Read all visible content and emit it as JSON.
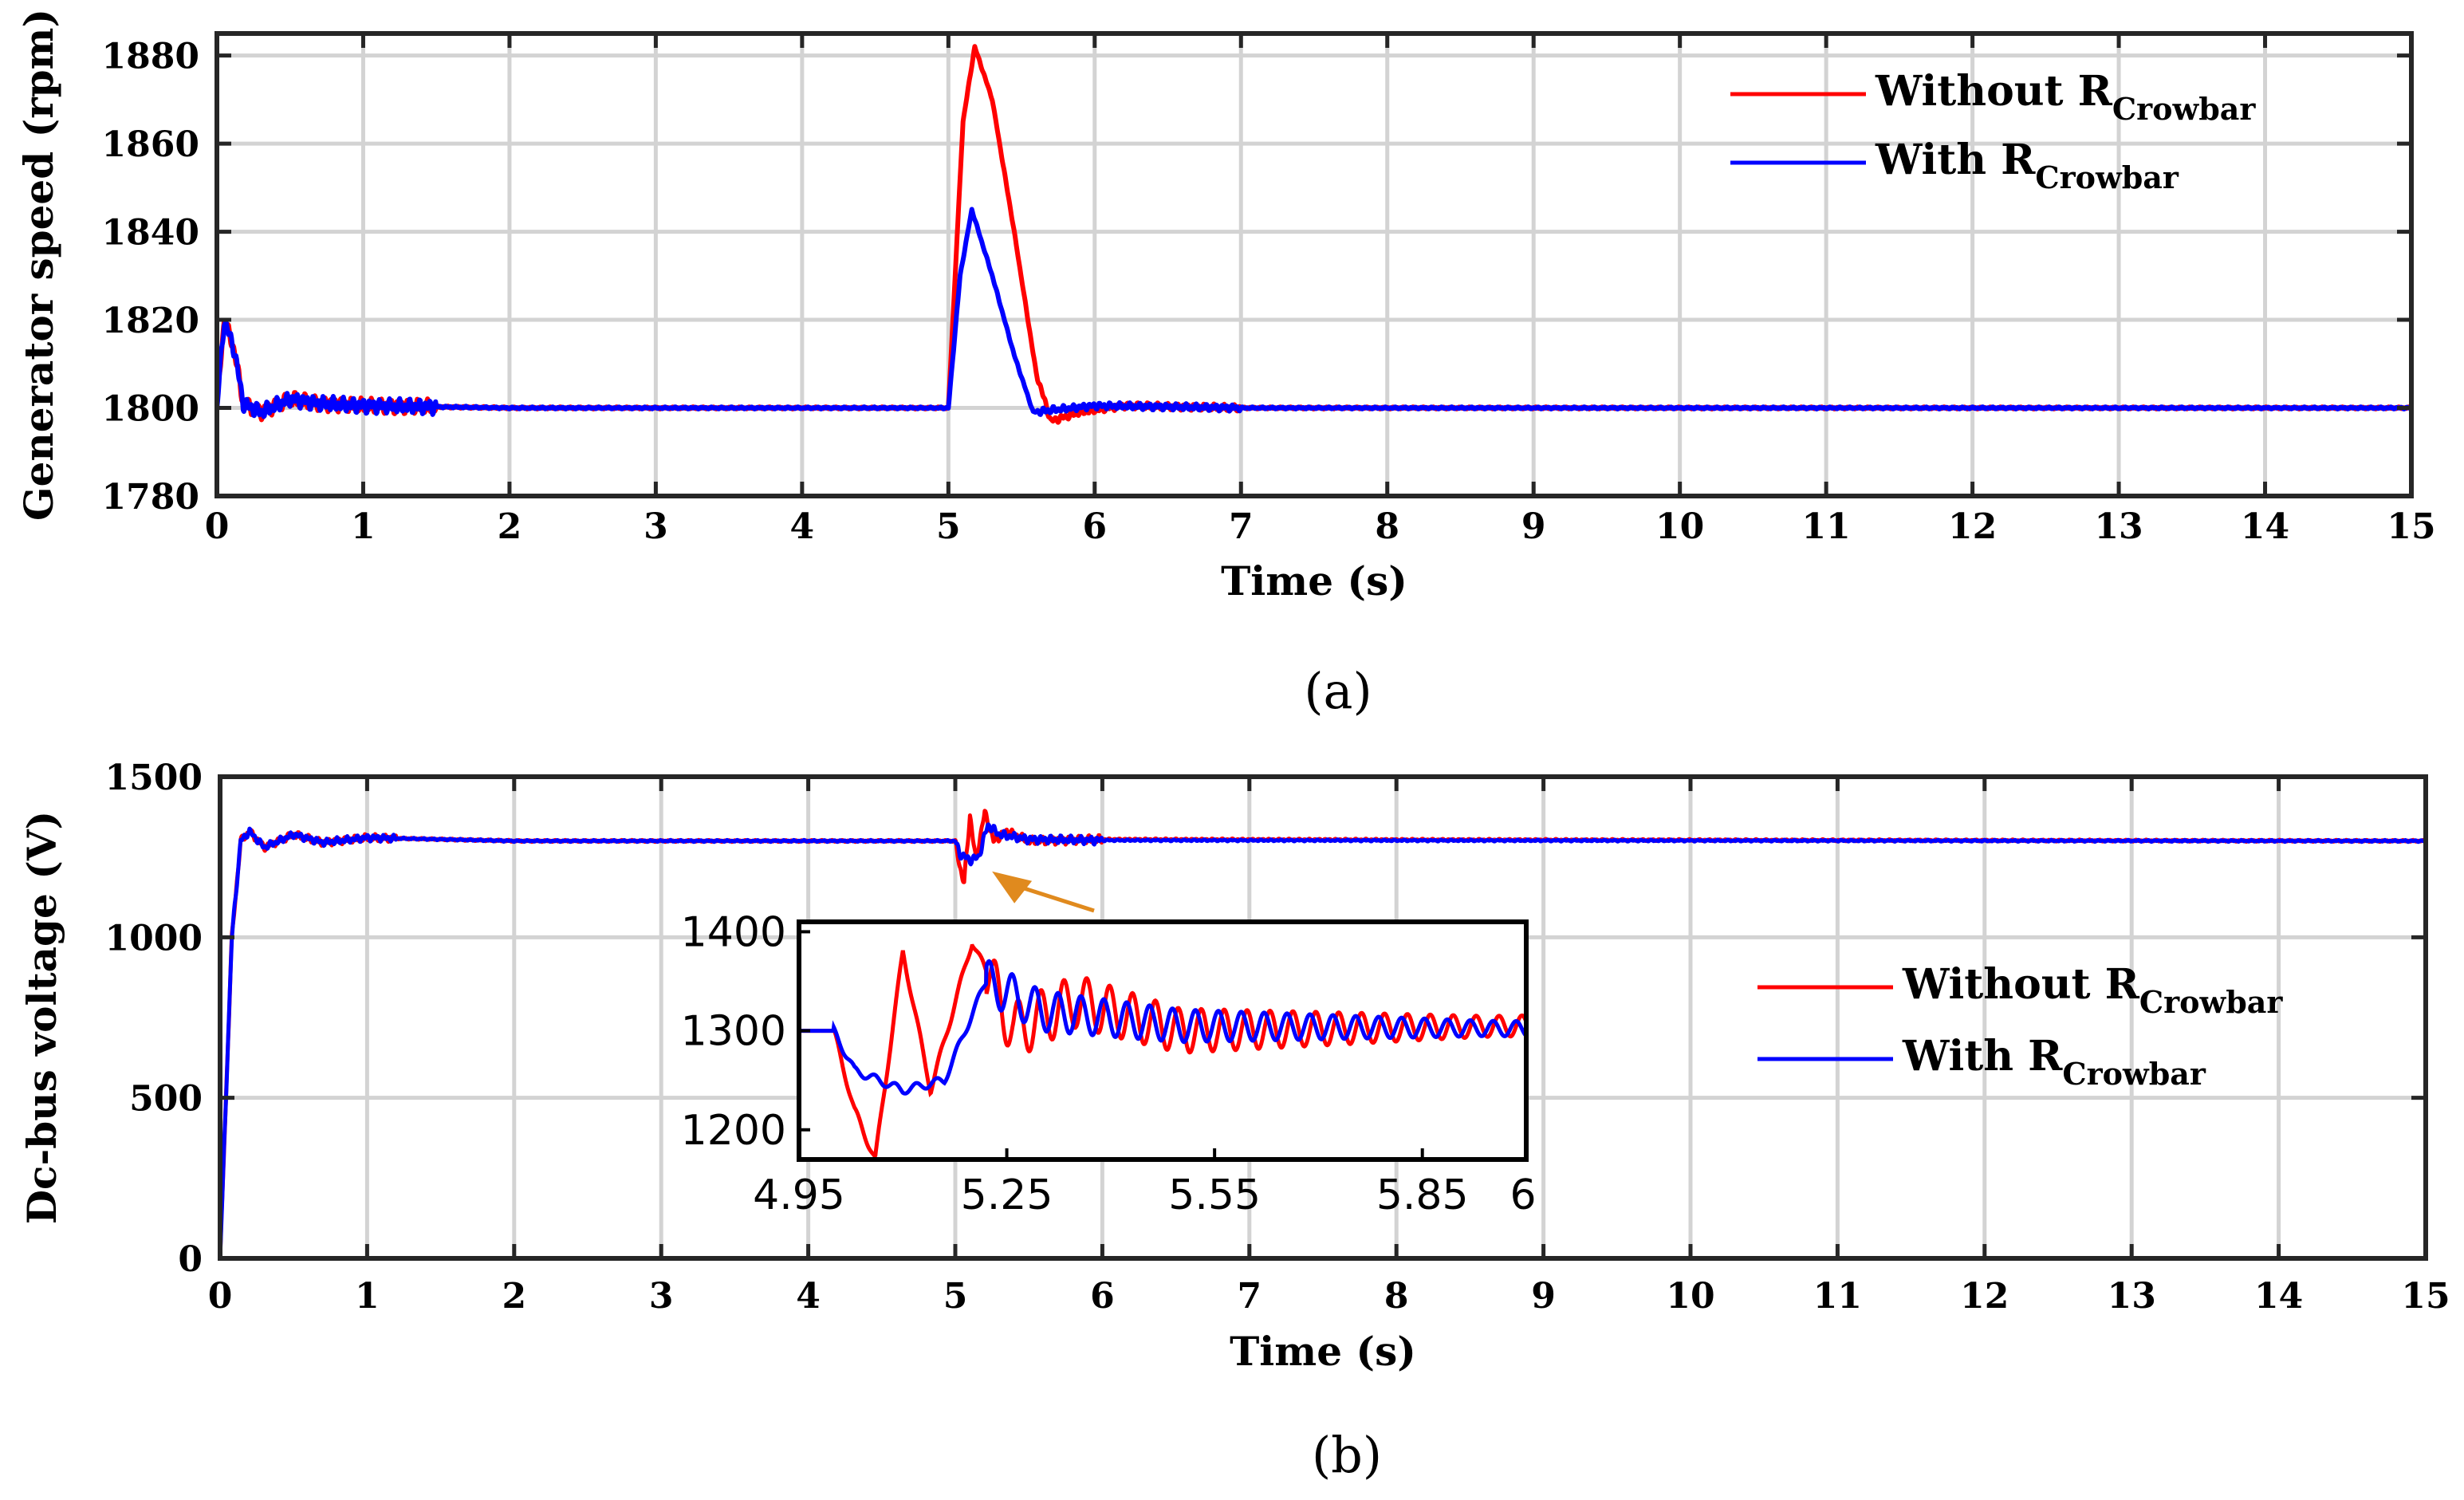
{
  "colors": {
    "without": "#ff0000",
    "with": "#0000ff",
    "grid": "#d3d3d3",
    "arrow": "#e08a1e"
  },
  "chart_data": [
    {
      "id": "a",
      "type": "line",
      "caption": "(a)",
      "xlabel": "Time (s)",
      "ylabel": "Generator speed (rpm)",
      "xlim": [
        0,
        15
      ],
      "ylim": [
        1780,
        1885
      ],
      "xticks": [
        "0",
        "1",
        "2",
        "3",
        "4",
        "5",
        "6",
        "7",
        "8",
        "9",
        "10",
        "11",
        "12",
        "13",
        "14",
        "15"
      ],
      "yticks": [
        "1780",
        "1800",
        "1820",
        "1840",
        "1860",
        "1880"
      ],
      "grid": true,
      "legend": "top-right",
      "series": [
        {
          "name": "Without R",
          "sub": "Crowbar",
          "color": "#ff0000",
          "points": [
            [
              0,
              1800
            ],
            [
              0.05,
              1820
            ],
            [
              0.12,
              1813
            ],
            [
              0.18,
              1801
            ],
            [
              0.3,
              1799
            ],
            [
              0.5,
              1802
            ],
            [
              0.7,
              1801
            ],
            [
              1,
              1800.5
            ],
            [
              2,
              1800
            ],
            [
              5,
              1800
            ],
            [
              5.1,
              1865
            ],
            [
              5.18,
              1882
            ],
            [
              5.3,
              1870
            ],
            [
              5.45,
              1840
            ],
            [
              5.6,
              1808
            ],
            [
              5.7,
              1797
            ],
            [
              5.9,
              1799
            ],
            [
              6.2,
              1800.5
            ],
            [
              7,
              1800
            ],
            [
              15,
              1800
            ]
          ]
        },
        {
          "name": "With R",
          "sub": "Crowbar",
          "color": "#0000ff",
          "points": [
            [
              0,
              1800
            ],
            [
              0.05,
              1820
            ],
            [
              0.12,
              1813
            ],
            [
              0.18,
              1801
            ],
            [
              0.3,
              1799
            ],
            [
              0.5,
              1802
            ],
            [
              0.7,
              1801
            ],
            [
              1,
              1800.5
            ],
            [
              2,
              1800
            ],
            [
              5,
              1800
            ],
            [
              5.08,
              1830
            ],
            [
              5.16,
              1845
            ],
            [
              5.3,
              1830
            ],
            [
              5.45,
              1812
            ],
            [
              5.58,
              1799
            ],
            [
              5.7,
              1799.5
            ],
            [
              6,
              1800.5
            ],
            [
              7,
              1800
            ],
            [
              15,
              1800
            ]
          ]
        }
      ]
    },
    {
      "id": "b",
      "type": "line",
      "caption": "(b)",
      "xlabel": "Time (s)",
      "ylabel": "Dc-bus voltage (V)",
      "xlim": [
        0,
        15
      ],
      "ylim": [
        0,
        1500
      ],
      "xticks": [
        "0",
        "1",
        "2",
        "3",
        "4",
        "5",
        "6",
        "7",
        "8",
        "9",
        "10",
        "11",
        "12",
        "13",
        "14",
        "15"
      ],
      "yticks": [
        "0",
        "500",
        "1000",
        "1500"
      ],
      "grid": true,
      "legend": "right",
      "series": [
        {
          "name": "Without R",
          "sub": "Crowbar",
          "color": "#ff0000",
          "points": [
            [
              0,
              0
            ],
            [
              0.08,
              1000
            ],
            [
              0.14,
              1300
            ],
            [
              0.2,
              1330
            ],
            [
              0.3,
              1280
            ],
            [
              0.5,
              1320
            ],
            [
              0.7,
              1295
            ],
            [
              1,
              1310
            ],
            [
              2,
              1300
            ],
            [
              5,
              1300
            ],
            [
              5.03,
              1220
            ],
            [
              5.06,
              1170
            ],
            [
              5.1,
              1380
            ],
            [
              5.14,
              1240
            ],
            [
              5.2,
              1390
            ],
            [
              5.26,
              1300
            ],
            [
              5.35,
              1330
            ],
            [
              5.5,
              1300
            ],
            [
              6,
              1305
            ],
            [
              15,
              1300
            ]
          ]
        },
        {
          "name": "With R",
          "sub": "Crowbar",
          "color": "#0000ff",
          "points": [
            [
              0,
              0
            ],
            [
              0.08,
              1000
            ],
            [
              0.14,
              1300
            ],
            [
              0.2,
              1330
            ],
            [
              0.3,
              1280
            ],
            [
              0.5,
              1320
            ],
            [
              0.7,
              1295
            ],
            [
              1,
              1310
            ],
            [
              2,
              1300
            ],
            [
              5,
              1300
            ],
            [
              5.03,
              1260
            ],
            [
              5.1,
              1240
            ],
            [
              5.16,
              1250
            ],
            [
              5.22,
              1350
            ],
            [
              5.3,
              1320
            ],
            [
              5.5,
              1305
            ],
            [
              6,
              1302
            ],
            [
              15,
              1300
            ]
          ]
        }
      ],
      "inset": {
        "xlim": [
          4.95,
          6
        ],
        "ylim": [
          1170,
          1410
        ],
        "xticks": [
          "4.95",
          "5.25",
          "5.55",
          "5.85",
          "6"
        ],
        "yticks": [
          "1200",
          "1300",
          "1400"
        ]
      }
    }
  ]
}
